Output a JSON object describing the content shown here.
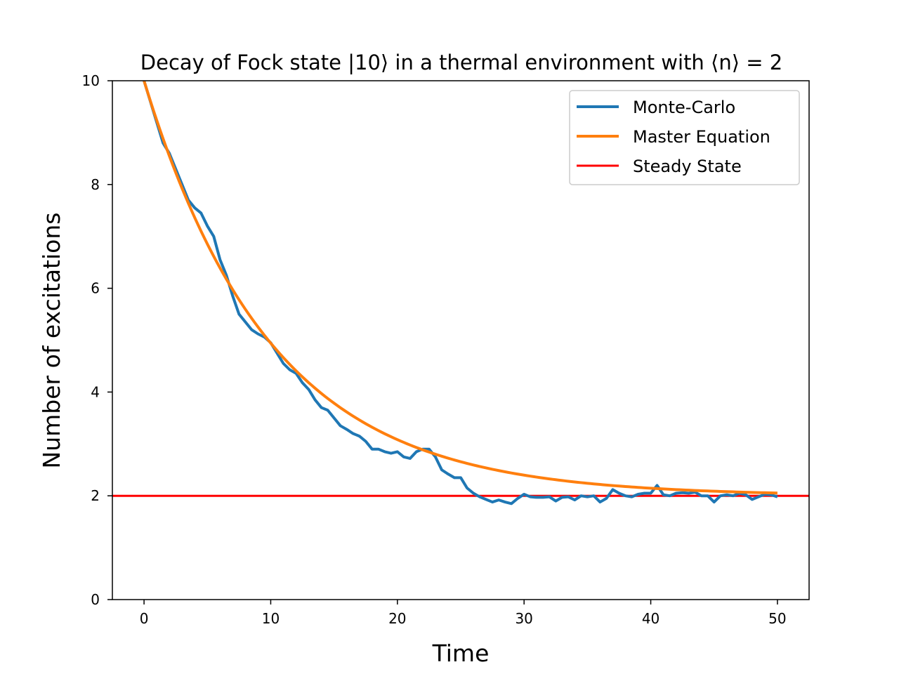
{
  "chart_data": {
    "type": "line",
    "title": "Decay of Fock state |10⟩ in a thermal environment with ⟨n⟩ = 2",
    "xlabel": "Time",
    "ylabel": "Number of excitations",
    "xlim": [
      -2.5,
      52.5
    ],
    "ylim": [
      0,
      10
    ],
    "xticks": [
      0,
      10,
      20,
      30,
      40,
      50
    ],
    "yticks": [
      0,
      2,
      4,
      6,
      8,
      10
    ],
    "grid": false,
    "legend_position": "upper right",
    "series": [
      {
        "name": "Monte-Carlo",
        "color": "#1f77b4",
        "x": [
          0,
          0.5,
          1,
          1.5,
          2,
          2.5,
          3,
          3.5,
          4,
          4.5,
          5,
          5.5,
          6,
          6.5,
          7,
          7.5,
          8,
          8.5,
          9,
          9.5,
          10,
          10.5,
          11,
          11.5,
          12,
          12.5,
          13,
          13.5,
          14,
          14.5,
          15,
          15.5,
          16,
          16.5,
          17,
          17.5,
          18,
          18.5,
          19,
          19.5,
          20,
          20.5,
          21,
          21.5,
          22,
          22.5,
          23,
          23.5,
          24,
          24.5,
          25,
          25.5,
          26,
          26.5,
          27,
          27.5,
          28,
          28.5,
          29,
          29.5,
          30,
          30.5,
          31,
          31.5,
          32,
          32.5,
          33,
          33.5,
          34,
          34.5,
          35,
          35.5,
          36,
          36.5,
          37,
          37.5,
          38,
          38.5,
          39,
          39.5,
          40,
          40.5,
          41,
          41.5,
          42,
          42.5,
          43,
          43.5,
          44,
          44.5,
          45,
          45.5,
          46,
          46.5,
          47,
          47.5,
          48,
          48.5,
          49,
          49.5,
          50
        ],
        "y": [
          10.0,
          9.6,
          9.2,
          8.8,
          8.6,
          8.3,
          8.0,
          7.7,
          7.55,
          7.45,
          7.2,
          7.0,
          6.55,
          6.25,
          5.85,
          5.5,
          5.35,
          5.2,
          5.12,
          5.06,
          4.95,
          4.75,
          4.55,
          4.43,
          4.36,
          4.18,
          4.05,
          3.85,
          3.7,
          3.65,
          3.5,
          3.35,
          3.28,
          3.2,
          3.15,
          3.05,
          2.9,
          2.9,
          2.85,
          2.82,
          2.85,
          2.75,
          2.72,
          2.85,
          2.9,
          2.9,
          2.75,
          2.5,
          2.42,
          2.35,
          2.35,
          2.15,
          2.05,
          1.98,
          1.93,
          1.88,
          1.92,
          1.88,
          1.85,
          1.95,
          2.03,
          1.98,
          1.97,
          1.97,
          1.98,
          1.9,
          1.97,
          1.98,
          1.92,
          2.0,
          1.98,
          2.0,
          1.88,
          1.95,
          2.12,
          2.05,
          2.0,
          1.98,
          2.03,
          2.05,
          2.05,
          2.2,
          2.02,
          2.0,
          2.05,
          2.06,
          2.05,
          2.07,
          2.0,
          2.0,
          1.88,
          2.0,
          2.02,
          2.0,
          2.05,
          2.02,
          1.93,
          1.98,
          2.03,
          2.02,
          1.98
        ]
      },
      {
        "name": "Master Equation",
        "color": "#ff7f0e",
        "function": "exponential_decay",
        "initial": 10,
        "steady": 2,
        "rate": 0.1,
        "x_range": [
          0,
          50
        ]
      },
      {
        "name": "Steady State",
        "color": "#ff0000",
        "y": 2
      }
    ]
  }
}
